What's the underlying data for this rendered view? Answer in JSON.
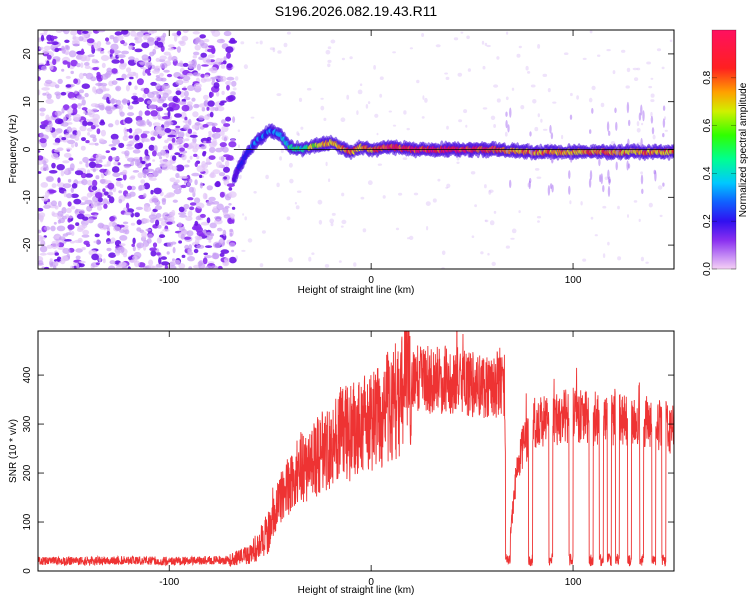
{
  "figure": {
    "title": "S196.2026.082.19.43.R11"
  },
  "colors": {
    "snr_line": "#ee3333",
    "colormap": [
      "#f5d0f5",
      "#b040f0",
      "#5a0fe0",
      "#1e1ef0",
      "#00c8ff",
      "#00ff90",
      "#40ff00",
      "#f0f000",
      "#ff9000",
      "#ff2020",
      "#ff1060"
    ]
  },
  "chart_data": [
    {
      "type": "heatmap",
      "title": "S196.2026.082.19.43.R11",
      "xlabel": "Height of straight line (km)",
      "ylabel": "Frequency (Hz)",
      "xlim": [
        -165,
        150
      ],
      "ylim": [
        -25,
        25
      ],
      "x_ticks": [
        -100,
        0,
        100
      ],
      "x_tick_labels": [
        "-100",
        "0",
        "100"
      ],
      "y_ticks": [
        -20,
        -10,
        0,
        10,
        20
      ],
      "y_tick_labels": [
        "-20",
        "-10",
        "0",
        "10",
        "20"
      ],
      "grid": false,
      "noise_region_x": [
        -165,
        -68
      ],
      "carrier_line_frequency": 0,
      "carrier_trace": {
        "x": [
          -68,
          -62,
          -56,
          -50,
          -45,
          -40,
          -35,
          -30,
          -25,
          -20,
          -15,
          -10,
          -5,
          0,
          10,
          20,
          30,
          40,
          50,
          60,
          80,
          100,
          120,
          140,
          150
        ],
        "frequency": [
          -6,
          -1,
          2,
          4,
          3,
          0.5,
          0,
          0.5,
          1,
          1.5,
          0.5,
          -0.5,
          0.5,
          0,
          0.5,
          0,
          0,
          0,
          0,
          0,
          -0.5,
          -0.5,
          -0.5,
          -0.5,
          -0.5
        ],
        "amplitude": [
          0.25,
          0.3,
          0.35,
          0.35,
          0.4,
          0.5,
          0.5,
          0.6,
          0.7,
          0.7,
          0.75,
          0.8,
          0.8,
          0.8,
          0.9,
          0.95,
          0.95,
          0.95,
          0.9,
          0.85,
          0.8,
          0.8,
          0.8,
          0.8,
          0.8
        ]
      }
    },
    {
      "type": "colorbar",
      "label": "Normalized spectral amplitude",
      "range": [
        0,
        1
      ],
      "ticks": [
        0.0,
        0.2,
        0.4,
        0.6,
        0.8
      ],
      "tick_labels": [
        "0.0",
        "0.2",
        "0.4",
        "0.6",
        "0.8"
      ]
    },
    {
      "type": "line",
      "xlabel": "Height of straight line (km)",
      "ylabel": "SNR (10 * v/v)",
      "xlim": [
        -165,
        150
      ],
      "ylim": [
        0,
        490
      ],
      "x_ticks": [
        -100,
        0,
        100
      ],
      "x_tick_labels": [
        "-100",
        "0",
        "100"
      ],
      "y_ticks": [
        0,
        100,
        200,
        300,
        400
      ],
      "y_tick_labels": [
        "0",
        "100",
        "200",
        "300",
        "400"
      ],
      "grid": false,
      "series": [
        {
          "color": "#ee3333",
          "x": [
            -165,
            -140,
            -120,
            -100,
            -80,
            -70,
            -60,
            -55,
            -50,
            -45,
            -40,
            -35,
            -30,
            -25,
            -20,
            -15,
            -10,
            -5,
            0,
            5,
            10,
            15,
            18,
            20,
            25,
            30,
            40,
            50,
            60,
            66,
            67,
            68,
            70,
            72,
            75,
            80,
            90,
            100,
            110,
            120,
            130,
            140,
            150
          ],
          "values": [
            20,
            20,
            22,
            20,
            22,
            22,
            35,
            55,
            90,
            150,
            180,
            210,
            220,
            240,
            260,
            280,
            280,
            300,
            300,
            320,
            340,
            360,
            420,
            380,
            400,
            390,
            390,
            380,
            380,
            380,
            20,
            20,
            120,
            200,
            250,
            300,
            310,
            320,
            310,
            310,
            310,
            300,
            290
          ],
          "dropouts_x": [
            68,
            79,
            89,
            99,
            109,
            114,
            118,
            122,
            128,
            134,
            140,
            145
          ]
        }
      ]
    }
  ]
}
